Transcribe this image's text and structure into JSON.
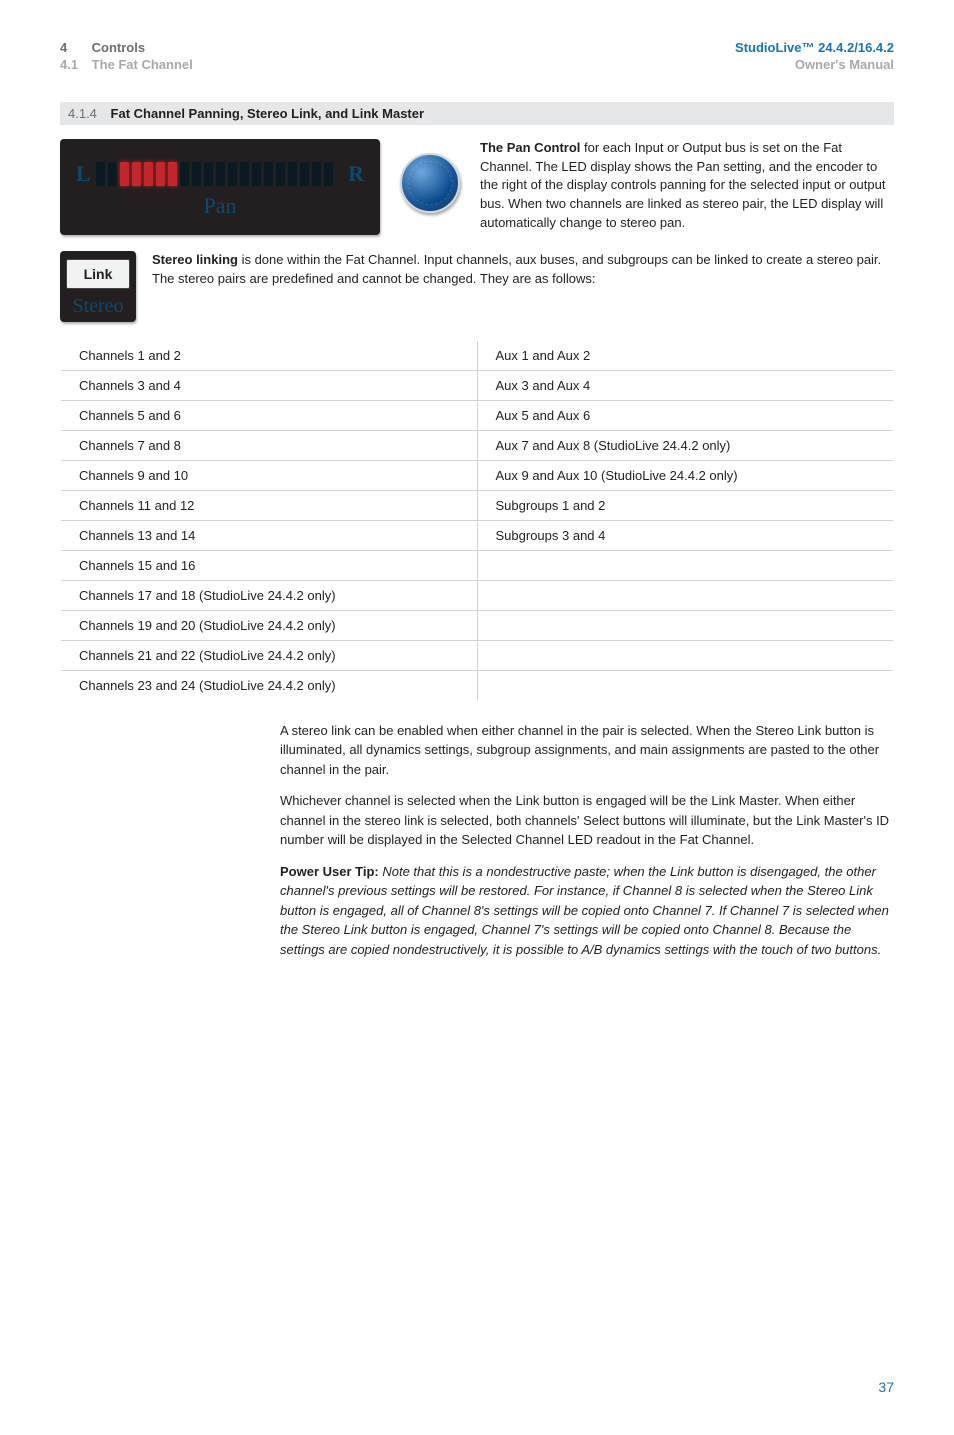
{
  "header": {
    "chapter_num": "4",
    "chapter_title": "Controls",
    "section_num": "4.1",
    "section_title": "The Fat Channel",
    "product": "StudioLive™ 24.4.2/16.4.2",
    "manual": "Owner's Manual"
  },
  "section_bar": {
    "num": "4.1.4",
    "title": "Fat Channel Panning, Stereo Link, and Link Master"
  },
  "pan_widget": {
    "L": "L",
    "R": "R",
    "label": "Pan"
  },
  "pan_paragraph": {
    "lead": "The Pan Control",
    "rest": " for each Input or Output bus is set on the Fat Channel. The LED display shows the Pan setting, and the encoder to the right of the display controls panning for the selected input or output bus. When two channels are linked as stereo pair, the LED display will automatically change to stereo pan."
  },
  "link_widget": {
    "button": "Link",
    "label": "Stereo"
  },
  "link_paragraph": {
    "lead": "Stereo linking",
    "rest": " is done within the Fat Channel. Input channels, aux buses, and subgroups can be linked to create a stereo pair. The stereo pairs are predefined and cannot be changed. They are as follows:"
  },
  "pairs_table": {
    "rows": [
      [
        "Channels 1 and 2",
        "Aux 1 and Aux 2"
      ],
      [
        "Channels 3 and 4",
        "Aux 3 and Aux 4"
      ],
      [
        "Channels 5 and 6",
        "Aux 5 and Aux 6"
      ],
      [
        "Channels 7 and 8",
        "Aux 7 and Aux 8 (StudioLive 24.4.2 only)"
      ],
      [
        "Channels 9 and 10",
        "Aux 9 and Aux 10 (StudioLive 24.4.2 only)"
      ],
      [
        "Channels 11 and 12",
        "Subgroups 1 and 2"
      ],
      [
        "Channels 13 and 14",
        "Subgroups 3 and 4"
      ],
      [
        "Channels 15 and 16",
        ""
      ],
      [
        "Channels 17 and 18 (StudioLive 24.4.2 only)",
        ""
      ],
      [
        "Channels 19 and 20 (StudioLive 24.4.2 only)",
        ""
      ],
      [
        "Channels 21 and 22 (StudioLive 24.4.2 only)",
        ""
      ],
      [
        "Channels 23 and 24 (StudioLive 24.4.2 only)",
        ""
      ]
    ]
  },
  "body": {
    "p1": "A stereo link can be enabled when either channel in the pair is selected. When the Stereo Link button is illuminated, all dynamics settings, subgroup assignments, and main assignments are pasted to the other channel in the pair.",
    "p2": "Whichever channel is selected when the Link button is engaged will be the Link Master. When either channel in the stereo link is selected, both channels' Select buttons will illuminate, but the Link Master's ID number will be displayed in the Selected Channel LED readout in the Fat Channel.",
    "tip_lead": "Power User Tip:",
    "tip_rest": " Note that this is a nondestructive paste; when the Link button is disengaged, the other channel's previous settings will be restored. For instance, if Channel 8 is selected when the Stereo Link button is engaged, all of Channel 8's settings will be copied onto Channel 7. If Channel 7 is selected when the Stereo Link button is engaged, Channel 7's settings will be copied onto Channel 8. Because the settings are copied nondestructively, it is possible to A/B dynamics settings with the touch of two buttons."
  },
  "page_number": "37"
}
